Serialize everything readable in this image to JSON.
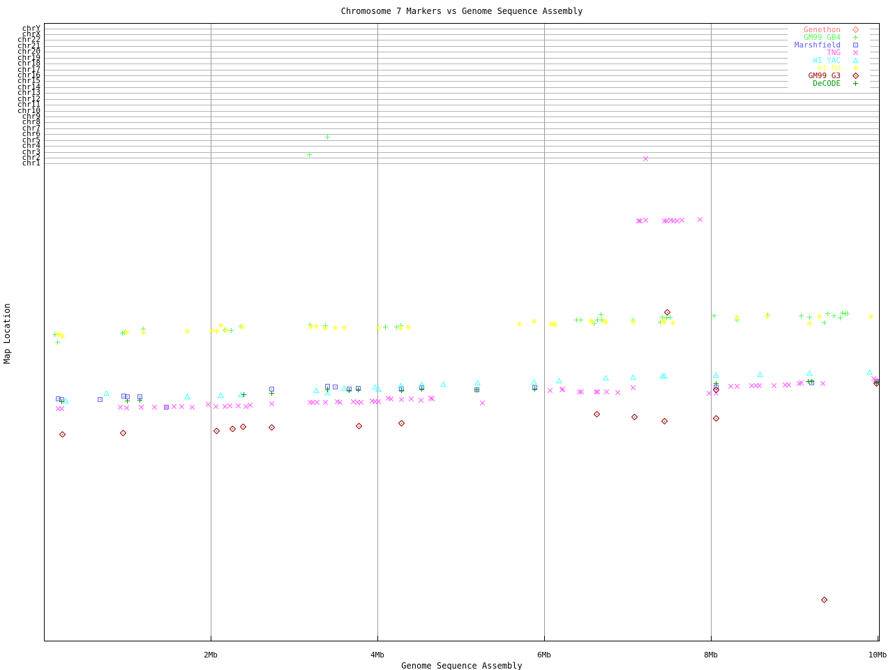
{
  "title": "Chromosome 7 Markers vs Genome Sequence Assembly",
  "axes": {
    "x": {
      "label": "Genome Sequence Assembly",
      "unit": "Mb",
      "range": [
        0,
        10
      ],
      "ticks": [
        {
          "label": "2Mb",
          "mb": 2
        },
        {
          "label": "4Mb",
          "mb": 4
        },
        {
          "label": "6Mb",
          "mb": 6
        },
        {
          "label": "8Mb",
          "mb": 8
        },
        {
          "label": "10Mb",
          "mb": 10
        }
      ]
    },
    "y": {
      "label": "Map Location",
      "chromosomes": [
        "chrY",
        "chrX",
        "chr22",
        "chr21",
        "chr20",
        "chr19",
        "chr18",
        "chr17",
        "chr16",
        "chr15",
        "chr14",
        "chr13",
        "chr12",
        "chr11",
        "chr10",
        "chr9",
        "chr8",
        "chr7",
        "chr6",
        "chr5",
        "chr4",
        "chr3",
        "chr2",
        "chr1"
      ]
    }
  },
  "legend": {
    "entries": [
      {
        "label": "Genethon",
        "color": "#ff7a7a",
        "marker": "diamond"
      },
      {
        "label": "GM99 GB4",
        "color": "#55ff55",
        "marker": "plus"
      },
      {
        "label": "Marshfield",
        "color": "#5c5cff",
        "marker": "square"
      },
      {
        "label": "TNG",
        "color": "#ff5cff",
        "marker": "x"
      },
      {
        "label": "WI YAC",
        "color": "#55ffff",
        "marker": "triangle"
      },
      {
        "label": "WI RH",
        "color": "#ffff4d",
        "marker": "asterisk"
      },
      {
        "label": "GM99 G3",
        "color": "#990000",
        "marker": "diamond"
      },
      {
        "label": "DeCODE",
        "color": "#009900",
        "marker": "plus"
      }
    ]
  },
  "colors": {
    "background": "#ffffff",
    "border": "#000000",
    "h_gridline": "#b4b4b4",
    "v_gridline": "#9c9c9c"
  },
  "chart_data": {
    "type": "scatter",
    "title": "Chromosome 7 Markers vs Genome Sequence Assembly",
    "xlabel": "Genome Sequence Assembly",
    "ylabel": "Map Location",
    "x_unit": "Mb",
    "x_range": [
      0,
      10
    ],
    "y_note": "y axis has no numeric scale; values are screen y-pixels. Horizontal chromosome track lines chrY..chr1 occupy y=40..235.",
    "grid": true,
    "legend_position": "top-right",
    "series": [
      {
        "name": "Genethon",
        "color": "#ff7a7a",
        "marker": "diamond",
        "points": []
      },
      {
        "name": "GM99 GB4",
        "color": "#55ff55",
        "marker": "plus",
        "points": [
          [
            0.13,
            479
          ],
          [
            0.16,
            490
          ],
          [
            0.94,
            477
          ],
          [
            0.97,
            476
          ],
          [
            1.19,
            471
          ],
          [
            2.17,
            472
          ],
          [
            2.25,
            473
          ],
          [
            2.36,
            467
          ],
          [
            3.18,
            221
          ],
          [
            3.19,
            465
          ],
          [
            3.38,
            466
          ],
          [
            3.4,
            196
          ],
          [
            4.1,
            468
          ],
          [
            4.23,
            468
          ],
          [
            4.28,
            466
          ],
          [
            5.88,
            460
          ],
          [
            6.39,
            458
          ],
          [
            6.44,
            458
          ],
          [
            6.6,
            463
          ],
          [
            6.64,
            458
          ],
          [
            6.68,
            450
          ],
          [
            6.69,
            458
          ],
          [
            7.07,
            458
          ],
          [
            7.39,
            461
          ],
          [
            7.42,
            454
          ],
          [
            7.47,
            455
          ],
          [
            7.51,
            454
          ],
          [
            8.04,
            452
          ],
          [
            8.31,
            458
          ],
          [
            8.68,
            451
          ],
          [
            9.08,
            452
          ],
          [
            9.18,
            454
          ],
          [
            9.36,
            462
          ],
          [
            9.4,
            449
          ],
          [
            9.48,
            452
          ],
          [
            9.55,
            455
          ],
          [
            9.58,
            448
          ],
          [
            9.61,
            449
          ],
          [
            9.64,
            449
          ]
        ]
      },
      {
        "name": "Marshfield",
        "color": "#5c5cff",
        "marker": "square",
        "points": [
          [
            0.17,
            571
          ],
          [
            0.21,
            572
          ],
          [
            0.67,
            572
          ],
          [
            0.96,
            567
          ],
          [
            1.0,
            568
          ],
          [
            1.15,
            568
          ],
          [
            1.47,
            583
          ],
          [
            2.73,
            557
          ],
          [
            3.4,
            553
          ],
          [
            3.49,
            554
          ],
          [
            3.66,
            557
          ],
          [
            3.77,
            556
          ],
          [
            4.29,
            557
          ],
          [
            4.53,
            555
          ],
          [
            5.19,
            558
          ],
          [
            5.89,
            555
          ],
          [
            8.06,
            554
          ],
          [
            9.21,
            548
          ],
          [
            9.99,
            546
          ]
        ]
      },
      {
        "name": "TNG",
        "color": "#ff5cff",
        "marker": "x",
        "points": [
          [
            7.22,
            227
          ],
          [
            7.13,
            316
          ],
          [
            7.15,
            316
          ],
          [
            7.22,
            315
          ],
          [
            7.44,
            316
          ],
          [
            7.47,
            316
          ],
          [
            7.52,
            315
          ],
          [
            7.55,
            316
          ],
          [
            7.59,
            316
          ],
          [
            7.65,
            315
          ],
          [
            7.87,
            314
          ],
          [
            0.17,
            585
          ],
          [
            0.21,
            585
          ],
          [
            0.92,
            583
          ],
          [
            0.99,
            584
          ],
          [
            1.17,
            583
          ],
          [
            1.33,
            583
          ],
          [
            1.47,
            583
          ],
          [
            1.56,
            582
          ],
          [
            1.65,
            582
          ],
          [
            1.78,
            583
          ],
          [
            1.97,
            579
          ],
          [
            2.06,
            582
          ],
          [
            2.17,
            582
          ],
          [
            2.23,
            581
          ],
          [
            2.33,
            581
          ],
          [
            2.42,
            582
          ],
          [
            2.47,
            580
          ],
          [
            2.73,
            578
          ],
          [
            3.19,
            576
          ],
          [
            3.23,
            576
          ],
          [
            3.28,
            576
          ],
          [
            3.38,
            576
          ],
          [
            3.52,
            575
          ],
          [
            3.55,
            576
          ],
          [
            3.71,
            575
          ],
          [
            3.76,
            576
          ],
          [
            3.8,
            576
          ],
          [
            3.94,
            574
          ],
          [
            3.97,
            575
          ],
          [
            4.01,
            575
          ],
          [
            4.13,
            570
          ],
          [
            4.16,
            571
          ],
          [
            4.29,
            572
          ],
          [
            4.41,
            571
          ],
          [
            4.52,
            573
          ],
          [
            4.64,
            570
          ],
          [
            4.66,
            571
          ],
          [
            5.26,
            577
          ],
          [
            6.07,
            559
          ],
          [
            6.21,
            558
          ],
          [
            6.22,
            557
          ],
          [
            6.42,
            561
          ],
          [
            6.45,
            561
          ],
          [
            6.62,
            561
          ],
          [
            6.64,
            561
          ],
          [
            6.75,
            561
          ],
          [
            6.88,
            562
          ],
          [
            7.07,
            555
          ],
          [
            7.98,
            563
          ],
          [
            8.06,
            563
          ],
          [
            8.24,
            553
          ],
          [
            8.31,
            553
          ],
          [
            8.49,
            552
          ],
          [
            8.54,
            552
          ],
          [
            8.58,
            552
          ],
          [
            8.76,
            552
          ],
          [
            8.89,
            551
          ],
          [
            8.93,
            551
          ],
          [
            9.06,
            549
          ],
          [
            9.08,
            548
          ],
          [
            9.34,
            549
          ],
          [
            9.95,
            542
          ],
          [
            9.97,
            544
          ],
          [
            9.99,
            546
          ]
        ]
      },
      {
        "name": "WI YAC",
        "color": "#55ffff",
        "marker": "triangle",
        "points": [
          [
            0.26,
            574
          ],
          [
            0.75,
            563
          ],
          [
            1.72,
            568
          ],
          [
            2.12,
            566
          ],
          [
            2.36,
            565
          ],
          [
            3.27,
            559
          ],
          [
            3.4,
            562
          ],
          [
            3.6,
            556
          ],
          [
            3.97,
            554
          ],
          [
            4.01,
            557
          ],
          [
            4.28,
            552
          ],
          [
            4.53,
            550
          ],
          [
            4.79,
            550
          ],
          [
            5.2,
            548
          ],
          [
            5.88,
            547
          ],
          [
            6.18,
            545
          ],
          [
            6.74,
            541
          ],
          [
            7.07,
            540
          ],
          [
            7.42,
            538
          ],
          [
            7.44,
            538
          ],
          [
            8.06,
            537
          ],
          [
            8.59,
            536
          ],
          [
            9.18,
            534
          ],
          [
            9.9,
            533
          ]
        ]
      },
      {
        "name": "WI RH",
        "color": "#ffff4d",
        "marker": "asterisk",
        "points": [
          [
            0.17,
            478
          ],
          [
            0.19,
            479
          ],
          [
            0.22,
            481
          ],
          [
            0.99,
            476
          ],
          [
            1.19,
            476
          ],
          [
            1.72,
            474
          ],
          [
            2.01,
            473
          ],
          [
            2.07,
            474
          ],
          [
            2.12,
            466
          ],
          [
            2.18,
            473
          ],
          [
            2.38,
            468
          ],
          [
            3.2,
            468
          ],
          [
            3.27,
            467
          ],
          [
            3.37,
            470
          ],
          [
            3.49,
            469
          ],
          [
            3.6,
            469
          ],
          [
            4.01,
            469
          ],
          [
            4.28,
            470
          ],
          [
            4.37,
            468
          ],
          [
            5.7,
            464
          ],
          [
            5.88,
            460
          ],
          [
            6.08,
            464
          ],
          [
            6.11,
            463
          ],
          [
            6.13,
            465
          ],
          [
            6.56,
            459
          ],
          [
            6.57,
            461
          ],
          [
            6.72,
            459
          ],
          [
            6.74,
            461
          ],
          [
            7.07,
            461
          ],
          [
            7.43,
            459
          ],
          [
            7.44,
            461
          ],
          [
            7.54,
            462
          ],
          [
            8.31,
            454
          ],
          [
            8.67,
            453
          ],
          [
            9.18,
            463
          ],
          [
            9.3,
            453
          ],
          [
            9.92,
            453
          ]
        ]
      },
      {
        "name": "GM99 G3",
        "color": "#990000",
        "marker": "diamond",
        "points": [
          [
            0.22,
            622
          ],
          [
            0.95,
            620
          ],
          [
            2.07,
            617
          ],
          [
            2.26,
            614
          ],
          [
            2.39,
            611
          ],
          [
            2.73,
            612
          ],
          [
            3.78,
            610
          ],
          [
            4.29,
            606
          ],
          [
            6.63,
            593
          ],
          [
            7.08,
            597
          ],
          [
            7.44,
            603
          ],
          [
            7.48,
            447
          ],
          [
            8.06,
            558
          ],
          [
            8.06,
            599
          ],
          [
            9.36,
            859
          ],
          [
            9.99,
            549
          ]
        ]
      },
      {
        "name": "DeCODE",
        "color": "#009900",
        "marker": "plus",
        "points": [
          [
            0.21,
            575
          ],
          [
            1.0,
            574
          ],
          [
            1.15,
            573
          ],
          [
            2.4,
            565
          ],
          [
            2.73,
            563
          ],
          [
            3.4,
            558
          ],
          [
            3.66,
            559
          ],
          [
            3.77,
            558
          ],
          [
            4.29,
            559
          ],
          [
            4.53,
            557
          ],
          [
            5.19,
            558
          ],
          [
            5.89,
            557
          ],
          [
            8.06,
            549
          ],
          [
            9.17,
            546
          ],
          [
            9.21,
            546
          ],
          [
            9.99,
            548
          ]
        ]
      }
    ]
  }
}
